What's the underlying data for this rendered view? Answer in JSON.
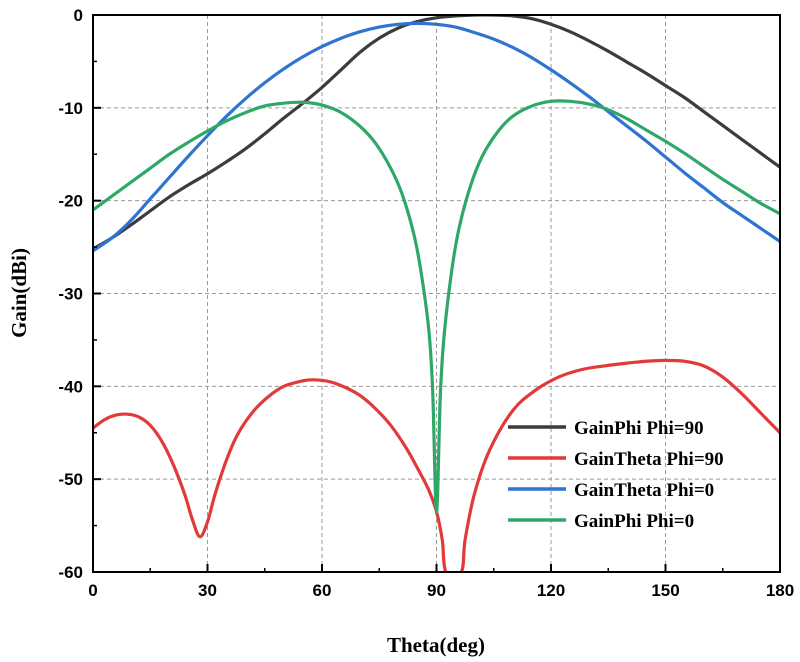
{
  "chart_data": {
    "type": "line",
    "title": "",
    "xlabel": "Theta(deg)",
    "ylabel": "Gain(dBi)",
    "xlim": [
      0,
      180
    ],
    "ylim": [
      -60,
      0
    ],
    "xticks": [
      0,
      30,
      60,
      90,
      120,
      150,
      180
    ],
    "yticks": [
      0,
      -10,
      -20,
      -30,
      -40,
      -50,
      -60
    ],
    "xtick_labels": [
      "0",
      "30",
      "60",
      "90",
      "120",
      "150",
      "180"
    ],
    "ytick_labels": [
      "0",
      "-10",
      "-20",
      "-30",
      "-40",
      "-50",
      "-60"
    ],
    "grid": true,
    "legend_position": "bottom-right",
    "series": [
      {
        "name": "GainPhi Phi=90",
        "color": "#3c3c3c",
        "x": [
          0,
          5,
          10,
          15,
          20,
          25,
          30,
          35,
          40,
          45,
          50,
          55,
          60,
          65,
          70,
          75,
          80,
          85,
          90,
          95,
          100,
          105,
          110,
          115,
          120,
          125,
          130,
          135,
          140,
          145,
          150,
          155,
          160,
          165,
          170,
          175,
          180
        ],
        "y": [
          -25.2,
          -24.0,
          -22.6,
          -21.1,
          -19.6,
          -18.3,
          -17.1,
          -15.8,
          -14.4,
          -12.8,
          -11.1,
          -9.5,
          -7.8,
          -5.9,
          -4.0,
          -2.5,
          -1.4,
          -0.7,
          -0.3,
          -0.1,
          0.0,
          0.0,
          -0.1,
          -0.4,
          -1.0,
          -1.8,
          -2.8,
          -3.9,
          -5.1,
          -6.3,
          -7.6,
          -8.9,
          -10.4,
          -11.9,
          -13.4,
          -14.9,
          -16.4
        ]
      },
      {
        "name": "GainTheta Phi=90",
        "color": "#e03a3a",
        "x": [
          0,
          3,
          6,
          9,
          12,
          15,
          18,
          21,
          24,
          26,
          28,
          30,
          32,
          35,
          38,
          42,
          46,
          50,
          55,
          58,
          62,
          66,
          70,
          74,
          78,
          82,
          85,
          88,
          90,
          91.5,
          92.5,
          96.5,
          97.5,
          100,
          104,
          110,
          116,
          122,
          128,
          134,
          140,
          145,
          150,
          155,
          160,
          165,
          170,
          175,
          180
        ],
        "y": [
          -44.5,
          -43.6,
          -43.1,
          -43.0,
          -43.3,
          -44.2,
          -45.9,
          -48.4,
          -51.6,
          -54.3,
          -56.2,
          -54.6,
          -51.6,
          -47.9,
          -45.1,
          -42.7,
          -41.1,
          -40.0,
          -39.4,
          -39.3,
          -39.5,
          -40.1,
          -41.0,
          -42.4,
          -44.2,
          -46.6,
          -48.8,
          -51.2,
          -53.5,
          -56.5,
          -60,
          -60,
          -56.5,
          -51.5,
          -46.8,
          -42.6,
          -40.4,
          -39.0,
          -38.2,
          -37.8,
          -37.5,
          -37.3,
          -37.2,
          -37.3,
          -37.8,
          -39.0,
          -40.8,
          -42.9,
          -45.0
        ]
      },
      {
        "name": "GainTheta Phi=0",
        "color": "#2f74d0",
        "x": [
          0,
          5,
          10,
          15,
          20,
          25,
          30,
          35,
          40,
          45,
          50,
          55,
          60,
          65,
          70,
          75,
          80,
          85,
          90,
          95,
          100,
          105,
          110,
          115,
          120,
          125,
          130,
          135,
          140,
          145,
          150,
          155,
          160,
          165,
          170,
          175,
          180
        ],
        "y": [
          -25.4,
          -24.0,
          -22.1,
          -19.8,
          -17.5,
          -15.2,
          -13.0,
          -10.9,
          -9.0,
          -7.3,
          -5.8,
          -4.5,
          -3.4,
          -2.5,
          -1.8,
          -1.3,
          -1.0,
          -0.9,
          -1.0,
          -1.3,
          -1.9,
          -2.6,
          -3.5,
          -4.6,
          -5.9,
          -7.3,
          -8.8,
          -10.4,
          -12.0,
          -13.6,
          -15.3,
          -17.0,
          -18.6,
          -20.2,
          -21.6,
          -23.0,
          -24.4
        ]
      },
      {
        "name": "GainPhi Phi=0",
        "color": "#2ea868",
        "x": [
          0,
          5,
          10,
          15,
          20,
          25,
          30,
          35,
          40,
          45,
          50,
          55,
          60,
          65,
          70,
          74,
          78,
          81,
          84,
          86,
          88,
          89,
          90,
          91,
          92,
          94,
          96,
          99,
          102,
          106,
          110,
          115,
          120,
          125,
          130,
          135,
          140,
          145,
          150,
          155,
          160,
          165,
          170,
          175,
          180
        ],
        "y": [
          -21.0,
          -19.5,
          -18.0,
          -16.5,
          -15.0,
          -13.7,
          -12.5,
          -11.4,
          -10.5,
          -9.8,
          -9.5,
          -9.4,
          -9.7,
          -10.5,
          -12.0,
          -13.8,
          -16.5,
          -19.3,
          -23.5,
          -27.8,
          -34.0,
          -40.5,
          -53.5,
          -41.0,
          -34.5,
          -27.5,
          -22.8,
          -18.3,
          -15.2,
          -12.6,
          -10.9,
          -9.8,
          -9.3,
          -9.3,
          -9.6,
          -10.2,
          -11.2,
          -12.4,
          -13.6,
          -14.9,
          -16.3,
          -17.7,
          -19.0,
          -20.3,
          -21.4
        ]
      }
    ]
  }
}
